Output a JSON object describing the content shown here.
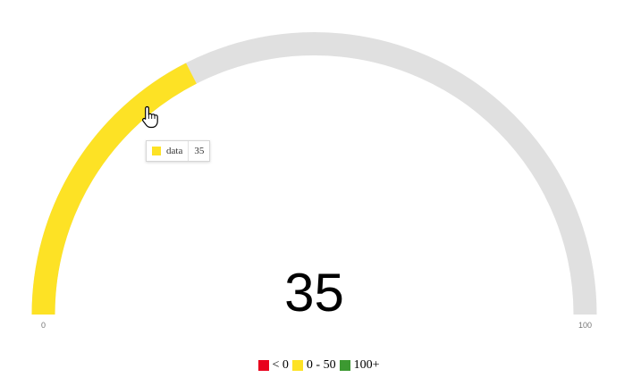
{
  "chart_data": {
    "type": "gauge",
    "value": 35,
    "min": 0,
    "max": 100,
    "series": [
      {
        "name": "data",
        "values": [
          35
        ]
      }
    ],
    "min_label": "0",
    "max_label": "100",
    "value_label": "35",
    "fill_color": "#fde225",
    "track_color": "#e0e0e0",
    "thresholds": [
      {
        "label": "< 0",
        "color": "#e8001c"
      },
      {
        "label": "0 - 50",
        "color": "#fde225"
      },
      {
        "label": "100+",
        "color": "#3c9931"
      }
    ],
    "legend_position": "bottom"
  },
  "tooltip": {
    "name": "data",
    "value": "35",
    "color": "#fde225"
  },
  "cursor": {
    "icon": "hand-pointer-icon"
  }
}
